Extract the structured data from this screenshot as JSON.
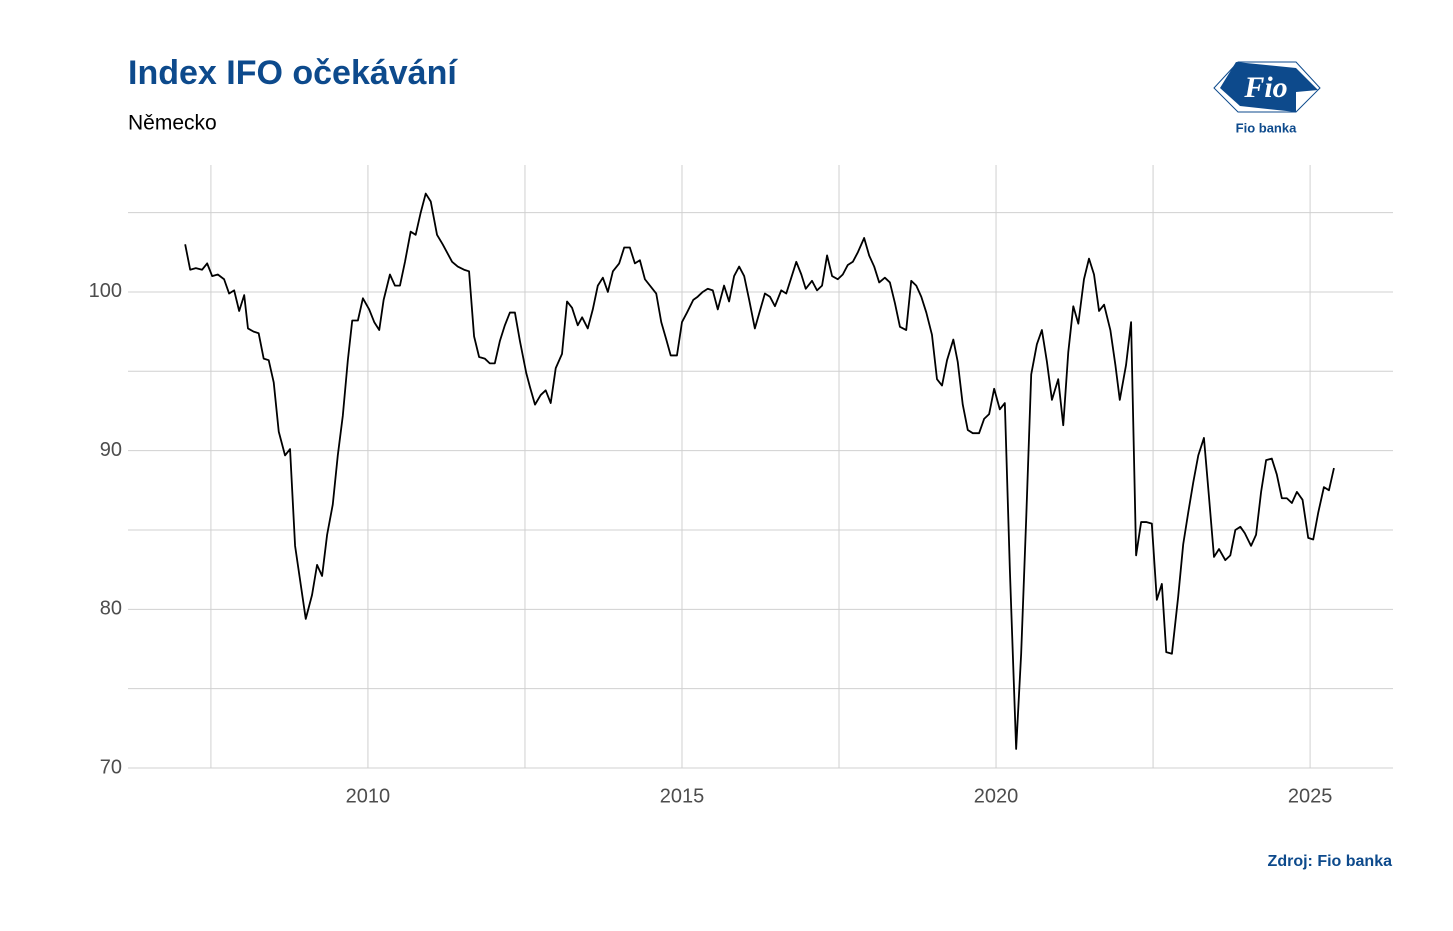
{
  "chart_data": {
    "type": "line",
    "title": "Index IFO očekávání",
    "subtitle": "Německo",
    "source": "Zdroj: Fio banka",
    "logo_text": "Fio",
    "logo_caption": "Fio banka",
    "x": [
      2007.09,
      2007.17,
      2007.26,
      2007.36,
      2007.44,
      2007.52,
      2007.61,
      2007.71,
      2007.79,
      2007.87,
      2007.95,
      2008.03,
      2008.09,
      2008.18,
      2008.26,
      2008.34,
      2008.42,
      2008.5,
      2008.58,
      2008.68,
      2008.76,
      2008.84,
      2009.01,
      2009.11,
      2009.19,
      2009.27,
      2009.35,
      2009.44,
      2009.52,
      2009.6,
      2009.68,
      2009.75,
      2009.84,
      2009.92,
      2010.02,
      2010.1,
      2010.18,
      2010.25,
      2010.35,
      2010.43,
      2010.51,
      2010.59,
      2010.68,
      2010.76,
      2010.84,
      2010.92,
      2011.0,
      2011.1,
      2011.19,
      2011.34,
      2011.43,
      2011.53,
      2011.61,
      2011.69,
      2011.77,
      2011.86,
      2011.94,
      2012.02,
      2012.1,
      2012.18,
      2012.26,
      2012.34,
      2012.42,
      2012.52,
      2012.58,
      2012.66,
      2012.75,
      2012.83,
      2012.91,
      2012.99,
      2013.09,
      2013.17,
      2013.25,
      2013.34,
      2013.41,
      2013.5,
      2013.58,
      2013.66,
      2013.74,
      2013.82,
      2013.9,
      2014.0,
      2014.08,
      2014.17,
      2014.25,
      2014.33,
      2014.41,
      2014.51,
      2014.59,
      2014.67,
      2014.75,
      2014.82,
      2014.92,
      2015.0,
      2015.08,
      2015.18,
      2015.25,
      2015.33,
      2015.41,
      2015.49,
      2015.57,
      2015.67,
      2015.75,
      2015.83,
      2015.91,
      2015.99,
      2016.07,
      2016.16,
      2016.24,
      2016.32,
      2016.4,
      2016.48,
      2016.58,
      2016.66,
      2016.74,
      2016.82,
      2016.9,
      2016.97,
      2017.07,
      2017.15,
      2017.23,
      2017.31,
      2017.39,
      2017.48,
      2017.56,
      2017.64,
      2017.72,
      2017.8,
      2017.9,
      2017.98,
      2018.06,
      2018.14,
      2018.23,
      2018.31,
      2018.39,
      2018.47,
      2018.57,
      2018.65,
      2018.73,
      2018.81,
      2018.89,
      2018.98,
      2019.06,
      2019.14,
      2019.22,
      2019.32,
      2019.39,
      2019.47,
      2019.55,
      2019.63,
      2019.73,
      2019.81,
      2019.89,
      2019.97,
      2020.06,
      2020.14,
      2020.22,
      2020.32,
      2020.4,
      2020.48,
      2020.56,
      2020.65,
      2020.73,
      2020.81,
      2020.89,
      2020.99,
      2021.07,
      2021.15,
      2021.23,
      2021.31,
      2021.4,
      2021.48,
      2021.56,
      2021.64,
      2021.72,
      2021.82,
      2021.9,
      2021.97,
      2022.07,
      2022.15,
      2022.23,
      2022.31,
      2022.39,
      2022.48,
      2022.56,
      2022.64,
      2022.71,
      2022.8,
      2022.9,
      2022.98,
      2023.06,
      2023.14,
      2023.22,
      2023.31,
      2023.39,
      2023.47,
      2023.55,
      2023.65,
      2023.73,
      2023.81,
      2023.89,
      2023.96,
      2024.06,
      2024.14,
      2024.22,
      2024.3,
      2024.39,
      2024.47,
      2024.55,
      2024.63,
      2024.71,
      2024.79,
      2024.88,
      2024.97,
      2025.05,
      2025.13,
      2025.22,
      2025.3,
      2025.38
    ],
    "series": [
      {
        "name": "Index IFO očekávání",
        "color": "#000000",
        "values": [
          103.0,
          101.4,
          101.5,
          101.4,
          101.8,
          101.0,
          101.1,
          100.8,
          99.9,
          100.1,
          98.8,
          99.8,
          97.7,
          97.5,
          97.4,
          95.8,
          95.7,
          94.3,
          91.2,
          89.7,
          90.1,
          84.0,
          79.4,
          80.9,
          82.8,
          82.1,
          84.7,
          86.6,
          89.7,
          92.2,
          95.7,
          98.2,
          98.2,
          99.6,
          98.9,
          98.1,
          97.6,
          99.5,
          101.1,
          100.4,
          100.4,
          101.9,
          103.8,
          103.6,
          105.0,
          106.2,
          105.7,
          103.6,
          103.0,
          101.9,
          101.6,
          101.4,
          101.3,
          97.2,
          95.9,
          95.8,
          95.5,
          95.5,
          96.9,
          97.9,
          98.7,
          98.7,
          96.9,
          94.9,
          94.0,
          92.9,
          93.5,
          93.8,
          93.0,
          95.2,
          96.1,
          99.4,
          99.0,
          97.9,
          98.4,
          97.7,
          98.9,
          100.4,
          100.9,
          100.0,
          101.3,
          101.8,
          102.8,
          102.8,
          101.8,
          102.0,
          100.8,
          100.3,
          99.9,
          98.1,
          97.0,
          96.0,
          96.0,
          98.1,
          98.7,
          99.5,
          99.7,
          100.0,
          100.2,
          100.1,
          98.9,
          100.4,
          99.4,
          101.0,
          101.6,
          101.0,
          99.5,
          97.7,
          98.8,
          99.9,
          99.7,
          99.1,
          100.1,
          99.9,
          100.9,
          101.9,
          101.1,
          100.2,
          100.7,
          100.1,
          100.4,
          102.3,
          101.0,
          100.8,
          101.1,
          101.7,
          101.9,
          102.5,
          103.4,
          102.3,
          101.6,
          100.6,
          100.9,
          100.6,
          99.3,
          97.8,
          97.6,
          100.7,
          100.4,
          99.7,
          98.7,
          97.3,
          94.5,
          94.1,
          95.7,
          97.0,
          95.6,
          92.9,
          91.3,
          91.1,
          91.1,
          92.0,
          92.3,
          93.9,
          92.6,
          93.0,
          82.5,
          71.2,
          77.2,
          85.7,
          94.8,
          96.7,
          97.6,
          95.6,
          93.2,
          94.5,
          91.6,
          96.2,
          99.1,
          98.0,
          100.8,
          102.1,
          101.1,
          98.8,
          99.2,
          97.6,
          95.4,
          93.2,
          95.4,
          98.1,
          83.4,
          85.5,
          85.5,
          85.4,
          80.6,
          81.6,
          77.3,
          77.2,
          80.8,
          84.1,
          86.1,
          88.0,
          89.7,
          90.8,
          87.1,
          83.3,
          83.8,
          83.1,
          83.4,
          85.0,
          85.2,
          84.8,
          84.0,
          84.7,
          87.4,
          89.4,
          89.5,
          88.5,
          87.0,
          87.0,
          86.7,
          87.4,
          86.9,
          84.5,
          84.4,
          86.1,
          87.7,
          87.5,
          88.9
        ]
      }
    ],
    "xlim": [
      2006.18,
      2026.32
    ],
    "xticks": [
      2010,
      2015,
      2020,
      2025
    ],
    "xminor": [
      2007.5,
      2012.5,
      2017.5,
      2022.5
    ],
    "ylim": [
      70,
      108
    ],
    "yticks": [
      70,
      80,
      90,
      100
    ],
    "yminor": [
      75,
      85,
      95,
      105
    ],
    "grid": true
  }
}
